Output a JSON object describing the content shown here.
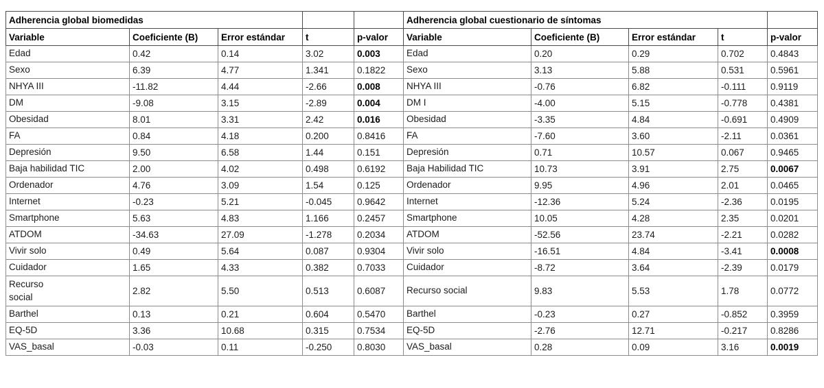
{
  "page": {
    "background": "#ffffff",
    "text_color": "#1c1c1c",
    "border_color": "#8c8c8c"
  },
  "tables": [
    {
      "title": "Adherencia global biomedidas",
      "columns": [
        "Variable",
        "Coeficiente (B)",
        "Error estándar",
        "t",
        "p-valor"
      ],
      "rows": [
        [
          "Edad",
          "0.42",
          "0.14",
          "3.02",
          "0.003",
          true
        ],
        [
          "Sexo",
          "6.39",
          "4.77",
          "1.341",
          "0.1822",
          false
        ],
        [
          "NHYA III",
          "-11.82",
          "4.44",
          "-2.66",
          "0.008",
          true
        ],
        [
          "DM",
          "-9.08",
          "3.15",
          "-2.89",
          "0.004",
          true
        ],
        [
          "Obesidad",
          "8.01",
          "3.31",
          "2.42",
          "0.016",
          true
        ],
        [
          "FA",
          "0.84",
          "4.18",
          "0.200",
          "0.8416",
          false
        ],
        [
          "Depresión",
          "9.50",
          "6.58",
          "1.44",
          "0.151",
          false
        ],
        [
          "Baja habilidad TIC",
          "2.00",
          "4.02",
          "0.498",
          "0.6192",
          false
        ],
        [
          "Ordenador",
          "4.76",
          "3.09",
          "1.54",
          "0.125",
          false
        ],
        [
          "Internet",
          "-0.23",
          "5.21",
          "-0.045",
          "0.9642",
          false
        ],
        [
          "Smartphone",
          "5.63",
          "4.83",
          "1.166",
          "0.2457",
          false
        ],
        [
          "ATDOM",
          "-34.63",
          "27.09",
          "-1.278",
          "0.2034",
          false
        ],
        [
          "Vivir solo",
          "0.49",
          "5.64",
          "0.087",
          "0.9304",
          false
        ],
        [
          "Cuidador",
          "1.65",
          "4.33",
          "0.382",
          "0.7033",
          false
        ],
        [
          "Recurso\nsocial",
          "2.82",
          "5.50",
          "0.513",
          "0.6087",
          false
        ],
        [
          "Barthel",
          "0.13",
          "0.21",
          "0.604",
          "0.5470",
          false
        ],
        [
          "EQ-5D",
          "3.36",
          "10.68",
          "0.315",
          "0.7534",
          false
        ],
        [
          "VAS_basal",
          "-0.03",
          "0.11",
          "-0.250",
          "0.8030",
          false
        ]
      ]
    },
    {
      "title": "Adherencia global cuestionario de síntomas",
      "columns": [
        "Variable",
        "Coeficiente (B)",
        "Error estándar",
        "t",
        "p-valor"
      ],
      "rows": [
        [
          "Edad",
          "0.20",
          "0.29",
          "0.702",
          "0.4843",
          false
        ],
        [
          "Sexo",
          "3.13",
          "5.88",
          "0.531",
          "0.5961",
          false
        ],
        [
          "NHYA III",
          "-0.76",
          "6.82",
          "-0.111",
          "0.9119",
          false
        ],
        [
          "DM I",
          "-4.00",
          "5.15",
          "-0.778",
          "0.4381",
          false
        ],
        [
          "Obesidad",
          "-3.35",
          "4.84",
          "-0.691",
          "0.4909",
          false
        ],
        [
          "FA",
          "-7.60",
          "3.60",
          "-2.11",
          "0.0361",
          false
        ],
        [
          "Depresión",
          "0.71",
          "10.57",
          "0.067",
          "0.9465",
          false
        ],
        [
          "Baja Habilidad TIC",
          "10.73",
          "3.91",
          "2.75",
          "0.0067",
          true
        ],
        [
          "Ordenador",
          "9.95",
          "4.96",
          "2.01",
          "0.0465",
          false
        ],
        [
          "Internet",
          "-12.36",
          "5.24",
          "-2.36",
          "0.0195",
          false
        ],
        [
          "Smartphone",
          "10.05",
          "4.28",
          "2.35",
          "0.0201",
          false
        ],
        [
          "ATDOM",
          "-52.56",
          "23.74",
          "-2.21",
          "0.0282",
          false
        ],
        [
          "Vivir solo",
          "-16.51",
          "4.84",
          "-3.41",
          "0.0008",
          true
        ],
        [
          "Cuidador",
          "-8.72",
          "3.64",
          "-2.39",
          "0.0179",
          false
        ],
        [
          "Recurso social",
          "9.83",
          "5.53",
          "1.78",
          "0.0772",
          false
        ],
        [
          "Barthel",
          "-0.23",
          "0.27",
          "-0.852",
          "0.3959",
          false
        ],
        [
          "EQ-5D",
          "-2.76",
          "12.71",
          "-0.217",
          "0.8286",
          false
        ],
        [
          "VAS_basal",
          "0.28",
          "0.09",
          "3.16",
          "0.0019",
          true
        ]
      ]
    }
  ]
}
